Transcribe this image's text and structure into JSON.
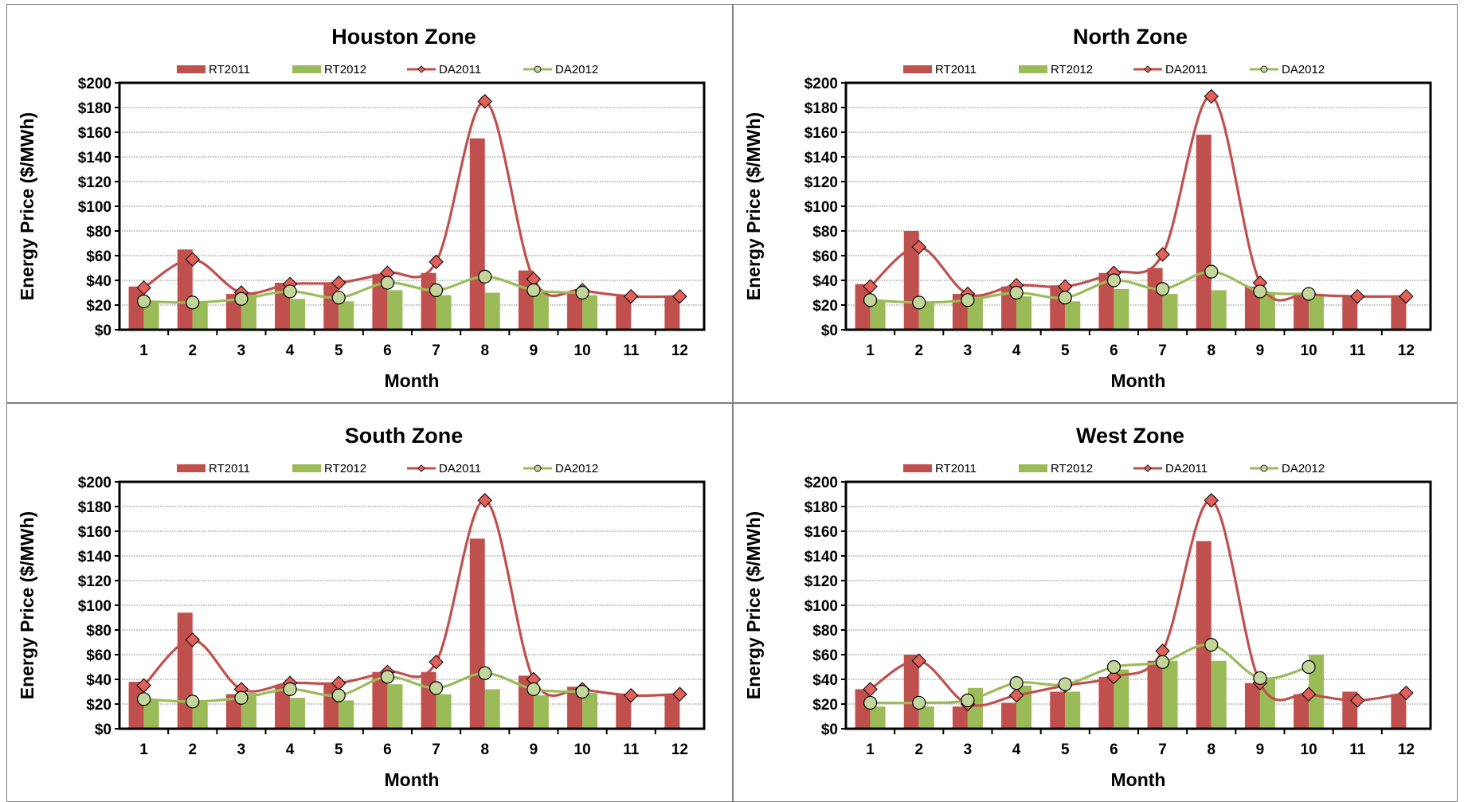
{
  "colors": {
    "rt2011": "#C0504D",
    "rt2012": "#9BBB59",
    "da2011_marker": "#E0605A",
    "da2012_marker": "#C3D69B"
  },
  "chart_data": [
    {
      "type": "bar",
      "title": "Houston Zone",
      "xlabel": "Month",
      "ylabel": "Energy Price ($/MWh)",
      "categories": [
        "1",
        "2",
        "3",
        "4",
        "5",
        "6",
        "7",
        "8",
        "9",
        "10",
        "11",
        "12"
      ],
      "y_ticks": [
        "$0",
        "$20",
        "$40",
        "$60",
        "$80",
        "$100",
        "$120",
        "$140",
        "$160",
        "$180",
        "$200"
      ],
      "ylim": [
        0,
        200
      ],
      "grid": true,
      "legend_position": "top",
      "series": [
        {
          "name": "RT2011",
          "kind": "bar",
          "values": [
            35,
            65,
            29,
            38,
            38,
            45,
            46,
            155,
            48,
            31,
            27,
            27
          ]
        },
        {
          "name": "RT2012",
          "kind": "bar",
          "values": [
            23,
            22,
            29,
            25,
            23,
            32,
            28,
            30,
            30,
            28,
            null,
            null
          ]
        },
        {
          "name": "DA2011",
          "kind": "line",
          "values": [
            34,
            57,
            30,
            37,
            38,
            46,
            55,
            185,
            41,
            32,
            27,
            27
          ]
        },
        {
          "name": "DA2012",
          "kind": "line",
          "values": [
            23,
            22,
            25,
            31,
            26,
            38,
            32,
            43,
            32,
            30,
            null,
            null
          ]
        }
      ]
    },
    {
      "type": "bar",
      "title": "North Zone",
      "xlabel": "Month",
      "ylabel": "Energy Price ($/MWh)",
      "categories": [
        "1",
        "2",
        "3",
        "4",
        "5",
        "6",
        "7",
        "8",
        "9",
        "10",
        "11",
        "12"
      ],
      "y_ticks": [
        "$0",
        "$20",
        "$40",
        "$60",
        "$80",
        "$100",
        "$120",
        "$140",
        "$160",
        "$180",
        "$200"
      ],
      "ylim": [
        0,
        200
      ],
      "grid": true,
      "legend_position": "top",
      "series": [
        {
          "name": "RT2011",
          "kind": "bar",
          "values": [
            37,
            80,
            29,
            35,
            36,
            46,
            50,
            158,
            35,
            30,
            28,
            27
          ]
        },
        {
          "name": "RT2012",
          "kind": "bar",
          "values": [
            23,
            22,
            28,
            27,
            23,
            33,
            29,
            32,
            29,
            29,
            null,
            null
          ]
        },
        {
          "name": "DA2011",
          "kind": "line",
          "values": [
            35,
            67,
            29,
            36,
            35,
            46,
            61,
            189,
            38,
            29,
            27,
            27
          ]
        },
        {
          "name": "DA2012",
          "kind": "line",
          "values": [
            24,
            22,
            24,
            30,
            26,
            40,
            33,
            47,
            31,
            29,
            null,
            null
          ]
        }
      ]
    },
    {
      "type": "bar",
      "title": "South Zone",
      "xlabel": "Month",
      "ylabel": "Energy Price ($/MWh)",
      "categories": [
        "1",
        "2",
        "3",
        "4",
        "5",
        "6",
        "7",
        "8",
        "9",
        "10",
        "11",
        "12"
      ],
      "y_ticks": [
        "$0",
        "$20",
        "$40",
        "$60",
        "$80",
        "$100",
        "$120",
        "$140",
        "$160",
        "$180",
        "$200"
      ],
      "ylim": [
        0,
        200
      ],
      "grid": true,
      "legend_position": "top",
      "series": [
        {
          "name": "RT2011",
          "kind": "bar",
          "values": [
            38,
            94,
            28,
            35,
            37,
            46,
            46,
            154,
            43,
            34,
            28,
            27
          ]
        },
        {
          "name": "RT2012",
          "kind": "bar",
          "values": [
            23,
            22,
            29,
            25,
            23,
            36,
            28,
            32,
            27,
            29,
            null,
            null
          ]
        },
        {
          "name": "DA2011",
          "kind": "line",
          "values": [
            35,
            72,
            32,
            37,
            37,
            46,
            54,
            185,
            40,
            32,
            27,
            28
          ]
        },
        {
          "name": "DA2012",
          "kind": "line",
          "values": [
            24,
            22,
            25,
            32,
            27,
            42,
            33,
            45,
            32,
            30,
            null,
            null
          ]
        }
      ]
    },
    {
      "type": "bar",
      "title": "West Zone",
      "xlabel": "Month",
      "ylabel": "Energy Price ($/MWh)",
      "categories": [
        "1",
        "2",
        "3",
        "4",
        "5",
        "6",
        "7",
        "8",
        "9",
        "10",
        "11",
        "12"
      ],
      "y_ticks": [
        "$0",
        "$20",
        "$40",
        "$60",
        "$80",
        "$100",
        "$120",
        "$140",
        "$160",
        "$180",
        "$200"
      ],
      "ylim": [
        0,
        200
      ],
      "grid": true,
      "legend_position": "top",
      "series": [
        {
          "name": "RT2011",
          "kind": "bar",
          "values": [
            32,
            60,
            18,
            21,
            30,
            42,
            55,
            152,
            37,
            28,
            30,
            28
          ]
        },
        {
          "name": "RT2012",
          "kind": "bar",
          "values": [
            18,
            18,
            33,
            35,
            30,
            48,
            55,
            55,
            40,
            60,
            null,
            null
          ]
        },
        {
          "name": "DA2011",
          "kind": "line",
          "values": [
            32,
            55,
            20,
            27,
            35,
            42,
            63,
            185,
            37,
            28,
            23,
            29
          ]
        },
        {
          "name": "DA2012",
          "kind": "line",
          "values": [
            21,
            21,
            23,
            37,
            36,
            50,
            54,
            68,
            41,
            50,
            null,
            null
          ]
        }
      ]
    }
  ]
}
